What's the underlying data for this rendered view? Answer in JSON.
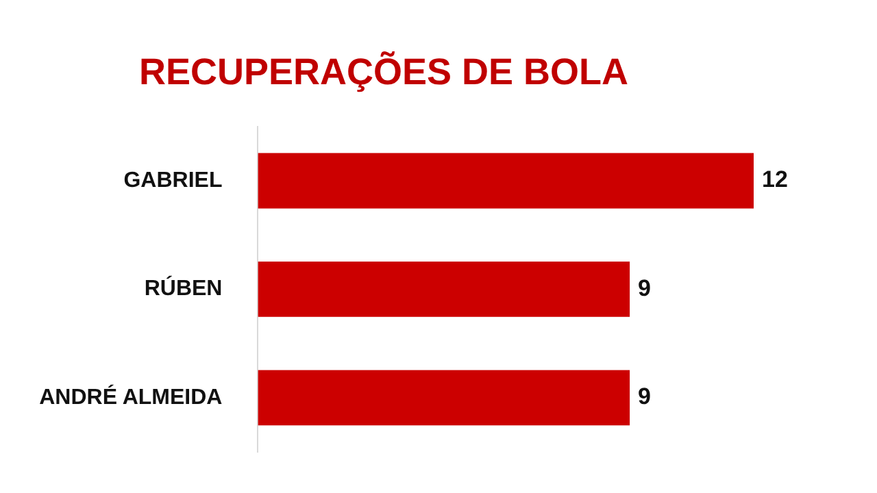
{
  "chart_data": {
    "type": "bar",
    "orientation": "horizontal",
    "title": "RECUPERAÇÕES DE BOLA",
    "categories": [
      "GABRIEL",
      "RÚBEN",
      "ANDRÉ ALMEIDA"
    ],
    "values": [
      12,
      9,
      9
    ],
    "color": "#cc0000",
    "tick_labels": "y",
    "data_labels": true,
    "legend": false
  }
}
